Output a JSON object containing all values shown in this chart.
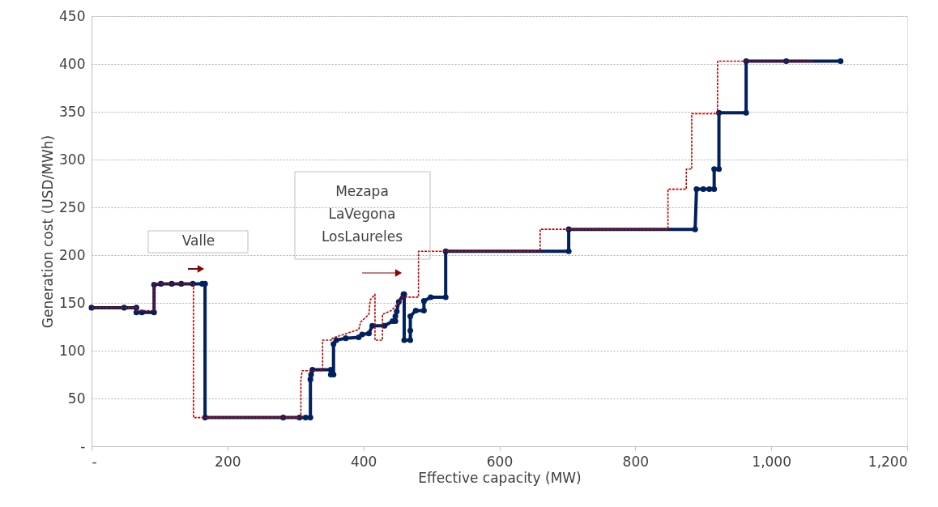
{
  "chart_data": {
    "type": "line",
    "xlabel": "Effective capacity (MW)",
    "ylabel": "Generation cost (USD/MWh)",
    "xlim": [
      0,
      1200
    ],
    "ylim": [
      0,
      450
    ],
    "xticks": [
      {
        "value": 0,
        "label": "-"
      },
      200,
      400,
      600,
      800,
      {
        "value": 1000,
        "label": "1,000"
      },
      {
        "value": 1200,
        "label": "1,200"
      }
    ],
    "yticks": [
      {
        "value": 0,
        "label": "-"
      },
      50,
      100,
      150,
      200,
      250,
      300,
      350,
      400,
      450
    ],
    "grid": "y",
    "series": [
      {
        "color": "#002060",
        "marker": "circle",
        "line_style": "solid",
        "x": [
          0,
          48,
          66,
          66,
          74,
          92,
          92,
          102,
          118,
          132,
          149,
          163,
          167,
          167,
          282,
          306,
          315,
          322,
          322,
          323,
          325,
          352,
          352,
          356,
          356,
          360,
          374,
          393,
          398,
          408,
          413,
          431,
          443,
          447,
          447,
          449,
          452,
          459,
          460,
          460,
          469,
          469,
          469,
          477,
          489,
          489,
          499,
          521,
          521,
          702,
          702,
          888,
          890,
          900,
          909,
          916,
          916,
          923,
          923,
          963,
          963,
          1022,
          1102
        ],
        "values": [
          145,
          145,
          145,
          140,
          140,
          140,
          169,
          170,
          170,
          170,
          170,
          170,
          170,
          30,
          30,
          30,
          30,
          30,
          70,
          75,
          80,
          80,
          75,
          75,
          107,
          111,
          113,
          114,
          117,
          118,
          126,
          126,
          131,
          131,
          136,
          141,
          151,
          159,
          159,
          111,
          111,
          121,
          136,
          142,
          142,
          152,
          156,
          156,
          204,
          204,
          227,
          227,
          269,
          269,
          269,
          269,
          290,
          290,
          349,
          349,
          403,
          403,
          403
        ]
      },
      {
        "color": "#c00000",
        "marker": "none",
        "line_style": "dotted",
        "x": [
          0,
          66,
          66,
          92,
          92,
          150,
          150,
          308,
          308,
          310,
          340,
          340,
          354,
          354,
          375,
          393,
          396,
          408,
          410,
          417,
          417,
          428,
          428,
          441,
          453,
          457,
          481,
          481,
          660,
          660,
          848,
          848,
          875,
          875,
          883,
          883,
          921,
          921,
          1061
        ],
        "values": [
          145,
          145,
          142,
          142,
          170,
          170,
          30,
          30,
          70,
          79,
          79,
          111,
          111,
          113,
          118,
          122,
          130,
          138,
          153,
          159,
          111,
          111,
          138,
          142,
          151,
          156,
          156,
          204,
          204,
          227,
          227,
          269,
          269,
          290,
          290,
          348,
          348,
          403,
          403
        ]
      }
    ],
    "annotations": [
      "Valle",
      "Mezapa\nLaVegona\nLosLaureles"
    ]
  }
}
